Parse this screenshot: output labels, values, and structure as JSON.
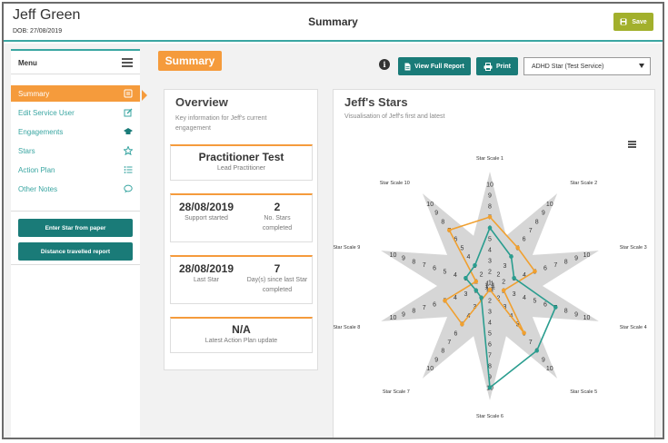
{
  "header": {
    "user_name": "Jeff Green",
    "dob": "DOB: 27/08/2019",
    "page_title": "Summary",
    "save_label": "Save"
  },
  "sidebar": {
    "menu_label": "Menu",
    "items": [
      {
        "label": "Summary",
        "icon": "summary-icon",
        "active": true
      },
      {
        "label": "Edit Service User",
        "icon": "edit-icon",
        "active": false
      },
      {
        "label": "Engagements",
        "icon": "graduation-cap-icon",
        "active": false
      },
      {
        "label": "Stars",
        "icon": "star-icon",
        "active": false
      },
      {
        "label": "Action Plan",
        "icon": "list-icon",
        "active": false
      },
      {
        "label": "Other Notes",
        "icon": "comment-icon",
        "active": false
      }
    ],
    "buttons": [
      "Enter Star from paper",
      "Distance travelled report"
    ]
  },
  "toolbar": {
    "section_tab": "Summary",
    "view_full_report": "View Full Report",
    "print": "Print",
    "selected_star": "ADHD Star (Test Service)"
  },
  "overview": {
    "title": "Overview",
    "subtitle": "Key information for Jeff's current engagement",
    "practitioner_name": "Practitioner Test",
    "practitioner_role": "Lead Practitioner",
    "support_started_date": "28/08/2019",
    "support_started_label": "Support started",
    "stars_completed_count": "2",
    "stars_completed_label": "No. Stars completed",
    "last_star_date": "28/08/2019",
    "last_star_label": "Last Star",
    "days_since_count": "7",
    "days_since_label": "Day(s) since last Star completed",
    "action_plan_value": "N/A",
    "action_plan_label": "Latest Action Plan update"
  },
  "stars": {
    "title": "Jeff's Stars",
    "subtitle": "Visualisation of Jeff's first and latest",
    "menu_icon": "hamburger-icon"
  },
  "colors": {
    "teal": "#3aa6a2",
    "dark_teal": "#1a7b78",
    "orange": "#f59b3c",
    "olive": "#a2b02c",
    "first_series": "#f0a030",
    "latest_series": "#2a9d8f",
    "star_fill": "#d6d6d6"
  },
  "chart_data": {
    "type": "radar",
    "axes": [
      "Star Scale 1",
      "Star Scale 2",
      "Star Scale 3",
      "Star Scale 4",
      "Star Scale 5",
      "Star Scale 6",
      "Star Scale 7",
      "Star Scale 8",
      "Star Scale 9",
      "Star Scale 10"
    ],
    "scale": [
      1,
      2,
      3,
      4,
      5,
      6,
      7,
      8,
      9,
      10
    ],
    "range": [
      1,
      10
    ],
    "series": [
      {
        "color": "#f0a030",
        "values": [
          7,
          5,
          5,
          2,
          6,
          1,
          5,
          5,
          2,
          7
        ]
      },
      {
        "color": "#2a9d8f",
        "values": [
          6,
          4,
          3,
          7,
          8,
          10,
          2,
          2,
          3,
          3
        ]
      }
    ]
  }
}
